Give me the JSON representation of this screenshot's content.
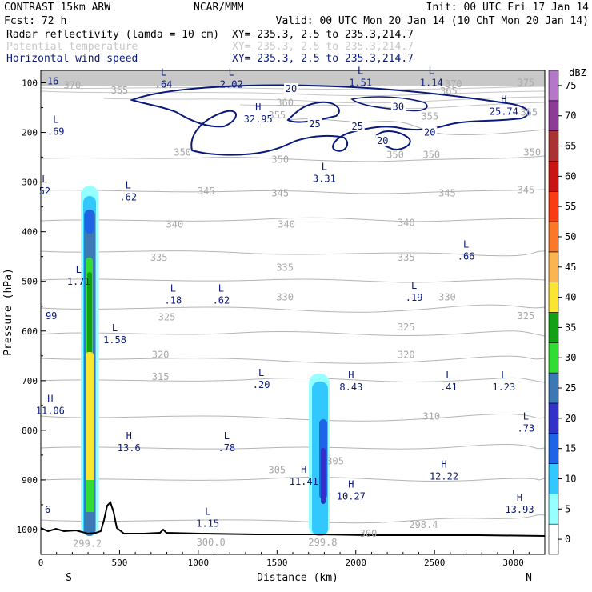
{
  "header": {
    "line1_left": "CONTRAST 15km ARW",
    "line1_center": "NCAR/MMM",
    "line1_right": "Init: 00 UTC Fri 17 Jan 14",
    "line2_left": "Fcst:    72 h",
    "line2_right": "Valid: 00 UTC Mon 20 Jan 14 (10 ChT Mon 20 Jan 14)",
    "fields": [
      {
        "name": "Radar reflectivity (lamda = 10 cm)",
        "xy": "XY= 235.3,  2.5 to 235.3,214.7",
        "color": "#000000"
      },
      {
        "name": "Potential temperature",
        "xy": "XY= 235.3,  2.5 to 235.3,214.7",
        "color": "#c8c8c8"
      },
      {
        "name": "Horizontal wind speed",
        "xy": "XY= 235.3,  2.5 to 235.3,214.7",
        "color": "#0a1a7a"
      }
    ]
  },
  "chart_data": {
    "type": "cross-section",
    "xlabel": "Distance (km)",
    "ylabel": "Pressure (hPa)",
    "xlim": [
      0,
      3200
    ],
    "ylim": [
      1050,
      75
    ],
    "x_ticks": [
      0,
      500,
      1000,
      1500,
      2000,
      2500,
      3000
    ],
    "y_ticks": [
      100,
      200,
      300,
      400,
      500,
      600,
      700,
      800,
      900,
      1000
    ],
    "x_end_labels": {
      "left": "S",
      "right": "N"
    },
    "colorbar": {
      "unit": "dBZ",
      "levels": [
        0,
        5,
        10,
        15,
        20,
        25,
        30,
        35,
        40,
        45,
        50,
        55,
        60,
        65,
        70,
        75
      ],
      "colors": [
        "#ffffff",
        "#96ffff",
        "#32c8ff",
        "#1e64e6",
        "#3232c8",
        "#3c78b4",
        "#32dc32",
        "#14a014",
        "#fae632",
        "#fab450",
        "#fa7828",
        "#fa3c14",
        "#c81414",
        "#aa3232",
        "#8c3c96",
        "#b478c8"
      ]
    },
    "theta_labels": [
      {
        "value": "370",
        "x": 200,
        "p": 105
      },
      {
        "value": "365",
        "x": 500,
        "p": 115
      },
      {
        "value": "370",
        "x": 2620,
        "p": 102
      },
      {
        "value": "375",
        "x": 3080,
        "p": 100
      },
      {
        "value": "365",
        "x": 2590,
        "p": 117
      },
      {
        "value": "360",
        "x": 1550,
        "p": 140
      },
      {
        "value": "355",
        "x": 1500,
        "p": 165
      },
      {
        "value": "355",
        "x": 2470,
        "p": 168
      },
      {
        "value": "355",
        "x": 3100,
        "p": 160
      },
      {
        "value": "350",
        "x": 900,
        "p": 240
      },
      {
        "value": "350",
        "x": 1520,
        "p": 255
      },
      {
        "value": "350",
        "x": 2250,
        "p": 245
      },
      {
        "value": "350",
        "x": 2480,
        "p": 245
      },
      {
        "value": "350",
        "x": 3120,
        "p": 240
      },
      {
        "value": "345",
        "x": 1050,
        "p": 318
      },
      {
        "value": "345",
        "x": 1520,
        "p": 322
      },
      {
        "value": "345",
        "x": 2580,
        "p": 322
      },
      {
        "value": "345",
        "x": 3080,
        "p": 316
      },
      {
        "value": "340",
        "x": 850,
        "p": 385
      },
      {
        "value": "340",
        "x": 1560,
        "p": 385
      },
      {
        "value": "340",
        "x": 2320,
        "p": 382
      },
      {
        "value": "335",
        "x": 750,
        "p": 452
      },
      {
        "value": "335",
        "x": 1550,
        "p": 472
      },
      {
        "value": "335",
        "x": 2320,
        "p": 452
      },
      {
        "value": "330",
        "x": 1550,
        "p": 532
      },
      {
        "value": "330",
        "x": 2580,
        "p": 532
      },
      {
        "value": "325",
        "x": 800,
        "p": 572
      },
      {
        "value": "325",
        "x": 2320,
        "p": 592
      },
      {
        "value": "325",
        "x": 3080,
        "p": 570
      },
      {
        "value": "320",
        "x": 760,
        "p": 648
      },
      {
        "value": "320",
        "x": 2320,
        "p": 648
      },
      {
        "value": "315",
        "x": 760,
        "p": 692
      },
      {
        "value": "310",
        "x": 2480,
        "p": 772
      },
      {
        "value": "305",
        "x": 1500,
        "p": 880
      },
      {
        "value": "305",
        "x": 1870,
        "p": 862
      },
      {
        "value": "299.2",
        "x": 295,
        "p": 1028
      },
      {
        "value": "300.0",
        "x": 1080,
        "p": 1026
      },
      {
        "value": "299.8",
        "x": 1790,
        "p": 1026
      },
      {
        "value": "300",
        "x": 2080,
        "p": 1008
      },
      {
        "value": "298.4",
        "x": 2430,
        "p": 990
      }
    ],
    "wind_labels": [
      {
        "value": "20",
        "x": 1590,
        "p": 112
      },
      {
        "value": "30",
        "x": 2270,
        "p": 148
      },
      {
        "value": "25",
        "x": 1740,
        "p": 183
      },
      {
        "value": "25",
        "x": 2010,
        "p": 188
      },
      {
        "value": "20",
        "x": 2170,
        "p": 217
      },
      {
        "value": "20",
        "x": 2470,
        "p": 200
      }
    ],
    "extrema": [
      {
        "kind": "L",
        "value": ".64",
        "x": 780,
        "p": 95
      },
      {
        "kind": "L",
        "value": "2.02",
        "x": 1210,
        "p": 95
      },
      {
        "kind": "L",
        "value": "1.51",
        "x": 2030,
        "p": 92
      },
      {
        "kind": "L",
        "value": "1.14",
        "x": 2480,
        "p": 92
      },
      {
        "kind": "H",
        "value": "32.95",
        "x": 1380,
        "p": 165
      },
      {
        "kind": "H",
        "value": "25.74",
        "x": 2940,
        "p": 150
      },
      {
        "kind": "L",
        "value": ".69",
        "x": 95,
        "p": 190
      },
      {
        "kind": "L",
        "value": "3.31",
        "x": 1800,
        "p": 285
      },
      {
        "kind": "L",
        "value": "52",
        "x": 25,
        "p": 310
      },
      {
        "kind": "L",
        "value": ".62",
        "x": 555,
        "p": 322
      },
      {
        "kind": "L",
        "value": ".66",
        "x": 2700,
        "p": 442
      },
      {
        "kind": "L",
        "value": "1.71",
        "x": 240,
        "p": 492
      },
      {
        "kind": "L",
        "value": ".18",
        "x": 840,
        "p": 530
      },
      {
        "kind": "L",
        "value": ".62",
        "x": 1145,
        "p": 530
      },
      {
        "kind": "L",
        "value": ".19",
        "x": 2370,
        "p": 525
      },
      {
        "kind": "L",
        "value": "1.58",
        "x": 470,
        "p": 610
      },
      {
        "kind": "L",
        "value": ".20",
        "x": 1400,
        "p": 700
      },
      {
        "kind": "H",
        "value": "8.43",
        "x": 1970,
        "p": 705
      },
      {
        "kind": "L",
        "value": ".41",
        "x": 2590,
        "p": 705
      },
      {
        "kind": "L",
        "value": "1.23",
        "x": 2940,
        "p": 705
      },
      {
        "kind": "H",
        "value": "11.06",
        "x": 60,
        "p": 753
      },
      {
        "kind": "L",
        "value": ".73",
        "x": 3080,
        "p": 788
      },
      {
        "kind": "H",
        "value": "13.6",
        "x": 560,
        "p": 828
      },
      {
        "kind": "L",
        "value": ".78",
        "x": 1180,
        "p": 828
      },
      {
        "kind": "H",
        "value": "11.41",
        "x": 1670,
        "p": 895
      },
      {
        "kind": "H",
        "value": "12.22",
        "x": 2560,
        "p": 885
      },
      {
        "kind": "H",
        "value": "10.27",
        "x": 1970,
        "p": 925
      },
      {
        "kind": "H",
        "value": "13.93",
        "x": 3040,
        "p": 952
      },
      {
        "kind": "L",
        "value": "1.15",
        "x": 1060,
        "p": 980
      }
    ],
    "edge_labels": [
      {
        "value": "16",
        "x": 30,
        "p": 97
      },
      {
        "value": "99",
        "x": 20,
        "p": 570
      },
      {
        "value": "6",
        "x": 15,
        "p": 960
      }
    ]
  }
}
